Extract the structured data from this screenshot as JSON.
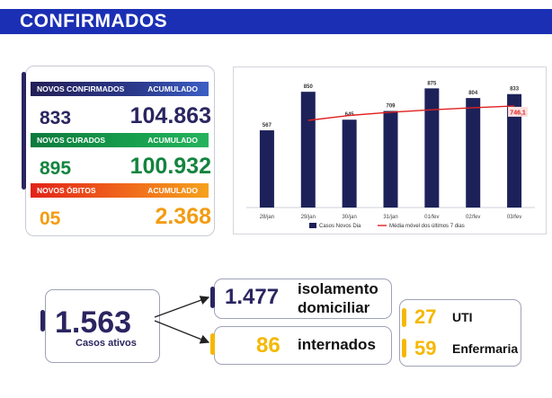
{
  "header": {
    "title": "CONFIRMADOS"
  },
  "stats": {
    "confirmados": {
      "label": "NOVOS CONFIRMADOS",
      "acc_label": "ACUMULADO",
      "novos": "833",
      "acumulado": "104.863",
      "color": "#2a2560"
    },
    "curados": {
      "label": "NOVOS CURADOS",
      "acc_label": "ACUMULADO",
      "novos": "895",
      "acumulado": "100.932",
      "color": "#13843f"
    },
    "obitos": {
      "label": "NOVOS ÓBITOS",
      "acc_label": "ACUMULADO",
      "novos": "05",
      "acumulado": "2.368",
      "color": "#f39c12"
    }
  },
  "chart_data": {
    "type": "bar",
    "categories": [
      "28/jan",
      "29/jan",
      "30/jan",
      "31/jan",
      "01/fev",
      "02/fev",
      "03/fev"
    ],
    "series": [
      {
        "name": "Casos Novos Dia",
        "type": "bar",
        "values": [
          567,
          850,
          645,
          709,
          875,
          804,
          833
        ],
        "color": "#1c2259"
      },
      {
        "name": "Média móvel dos últimos 7 dias",
        "type": "line",
        "values": [
          null,
          640,
          676,
          700,
          718,
          733,
          746.1
        ],
        "color": "#e02020"
      }
    ],
    "data_labels": [
      "567",
      "850",
      "645",
      "709",
      "875",
      "804",
      "833"
    ],
    "line_end_label": "746,1",
    "ylim": [
      0,
      950
    ],
    "grid": false,
    "legend": "bottom"
  },
  "ativos": {
    "value": "1.563",
    "label": "Casos ativos"
  },
  "isolamento": {
    "value": "1.477",
    "label_line1": "isolamento",
    "label_line2": "domiciliar"
  },
  "internados": {
    "value": "86",
    "label": "internados"
  },
  "uti": {
    "value": "27",
    "label": "UTI"
  },
  "enfermaria": {
    "value": "59",
    "label": "Enfermaria"
  },
  "colors": {
    "navy": "#2a2560",
    "brand_blue": "#1b2fb4",
    "yellow": "#f5b800",
    "green": "#13843f",
    "orange": "#f39c12",
    "red": "#e02020"
  }
}
